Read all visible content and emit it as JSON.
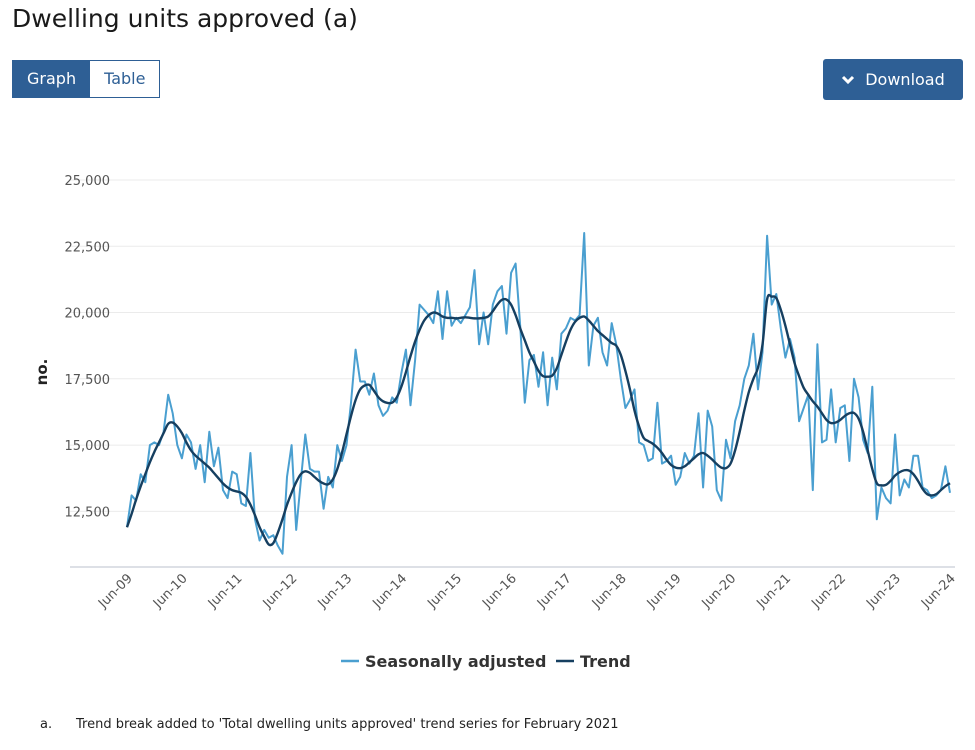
{
  "title": "Dwelling units approved (a)",
  "view_toggle": {
    "graph_label": "Graph",
    "table_label": "Table",
    "selected": "Graph"
  },
  "download": {
    "label": "Download",
    "icon": "chevron-down-icon"
  },
  "footnote": {
    "marker": "a.",
    "text": "Trend break added to 'Total dwelling units approved' trend series for February 2021"
  },
  "colors": {
    "accent": "#2e5f95",
    "seasonally_adjusted": "#4a9fd0",
    "trend": "#163f60"
  },
  "chart_data": {
    "type": "line",
    "title": "Dwelling units approved (a)",
    "xlabel": "",
    "ylabel": "no.",
    "frequency": "monthly",
    "x_range": [
      "Jun-09",
      "Jun-24"
    ],
    "x_ticks": [
      "Jun-09",
      "Jun-10",
      "Jun-11",
      "Jun-12",
      "Jun-13",
      "Jun-14",
      "Jun-15",
      "Jun-16",
      "Jun-17",
      "Jun-18",
      "Jun-19",
      "Jun-20",
      "Jun-21",
      "Jun-22",
      "Jun-23",
      "Jun-24"
    ],
    "y_ticks": [
      "12,500",
      "15,000",
      "17,500",
      "20,000",
      "22,500",
      "25,000"
    ],
    "ylim": [
      10400,
      25000
    ],
    "grid": true,
    "legend": "bottom",
    "series": [
      {
        "name": "Seasonally adjusted",
        "values": [
          11900,
          13100,
          12900,
          13900,
          13600,
          15000,
          15100,
          15000,
          15500,
          16900,
          16200,
          15000,
          14500,
          15400,
          15100,
          14100,
          15000,
          13600,
          15500,
          14200,
          14900,
          13300,
          13000,
          14000,
          13900,
          12800,
          12700,
          14700,
          12200,
          11400,
          11800,
          11500,
          11600,
          11200,
          10900,
          13800,
          15000,
          11800,
          13600,
          15400,
          14100,
          14000,
          14000,
          12600,
          13800,
          13400,
          15000,
          14400,
          15000,
          16600,
          18600,
          17400,
          17400,
          16900,
          17700,
          16500,
          16100,
          16300,
          16800,
          16600,
          17700,
          18600,
          16500,
          18200,
          20300,
          20100,
          19900,
          19600,
          20800,
          19000,
          20800,
          19500,
          19800,
          19600,
          19900,
          20200,
          21600,
          18800,
          20000,
          18800,
          20300,
          20800,
          21000,
          19200,
          21500,
          21850,
          19500,
          16600,
          18200,
          18400,
          17200,
          18500,
          16500,
          18300,
          17100,
          19200,
          19400,
          19800,
          19700,
          19900,
          23000,
          18000,
          19500,
          19800,
          18500,
          18000,
          19600,
          18800,
          17500,
          16400,
          16700,
          17100,
          15100,
          15000,
          14400,
          14500,
          16600,
          14300,
          14400,
          14600,
          13500,
          13800,
          14700,
          14300,
          14600,
          16200,
          13400,
          16300,
          15700,
          13300,
          12900,
          15200,
          14500,
          15900,
          16500,
          17500,
          18000,
          19200,
          17100,
          18500,
          22900,
          20300,
          20700,
          19400,
          18300,
          19000,
          18300,
          15900,
          16400,
          16900,
          13300,
          18800,
          15100,
          15200,
          17100,
          15100,
          16400,
          16500,
          14400,
          17500,
          16800,
          15200,
          14700,
          17200,
          12200,
          13400,
          13000,
          12800,
          15400,
          13100,
          13700,
          13400,
          14600,
          14600,
          13400,
          13300,
          13000,
          13100,
          13300,
          14200,
          13200
        ]
      },
      {
        "name": "Trend",
        "values": [
          11900,
          12400,
          12950,
          13450,
          13900,
          14350,
          14750,
          15100,
          15450,
          15800,
          15850,
          15700,
          15450,
          15100,
          14800,
          14600,
          14450,
          14300,
          14150,
          13950,
          13750,
          13550,
          13400,
          13300,
          13250,
          13200,
          13050,
          12750,
          12350,
          11900,
          11550,
          11250,
          11300,
          11700,
          12200,
          12750,
          13200,
          13600,
          13900,
          14010,
          13950,
          13800,
          13650,
          13550,
          13520,
          13700,
          14100,
          14700,
          15400,
          16100,
          16700,
          17100,
          17250,
          17270,
          17050,
          16800,
          16650,
          16590,
          16600,
          16800,
          17200,
          17750,
          18350,
          18900,
          19350,
          19700,
          19900,
          20000,
          19960,
          19850,
          19800,
          19800,
          19780,
          19800,
          19820,
          19800,
          19780,
          19780,
          19800,
          19850,
          20050,
          20300,
          20480,
          20490,
          20300,
          19900,
          19400,
          18950,
          18500,
          18150,
          17800,
          17600,
          17580,
          17620,
          17900,
          18400,
          18900,
          19350,
          19650,
          19800,
          19850,
          19700,
          19500,
          19300,
          19150,
          19000,
          18850,
          18750,
          18400,
          17800,
          17100,
          16300,
          15700,
          15270,
          15150,
          15050,
          14900,
          14700,
          14450,
          14250,
          14150,
          14130,
          14200,
          14350,
          14500,
          14650,
          14700,
          14600,
          14450,
          14280,
          14150,
          14130,
          14300,
          14800,
          15500,
          16300,
          17000,
          17500,
          17920,
          18800,
          20500,
          20600,
          20550,
          20100,
          19500,
          18800,
          18100,
          17600,
          17160,
          16900,
          16650,
          16450,
          16200,
          15950,
          15830,
          15850,
          15950,
          16100,
          16200,
          16210,
          16000,
          15500,
          14800,
          14100,
          13560,
          13480,
          13500,
          13650,
          13850,
          13980,
          14050,
          14040,
          13900,
          13650,
          13350,
          13150,
          13100,
          13150,
          13300,
          13450,
          13560
        ]
      }
    ]
  }
}
